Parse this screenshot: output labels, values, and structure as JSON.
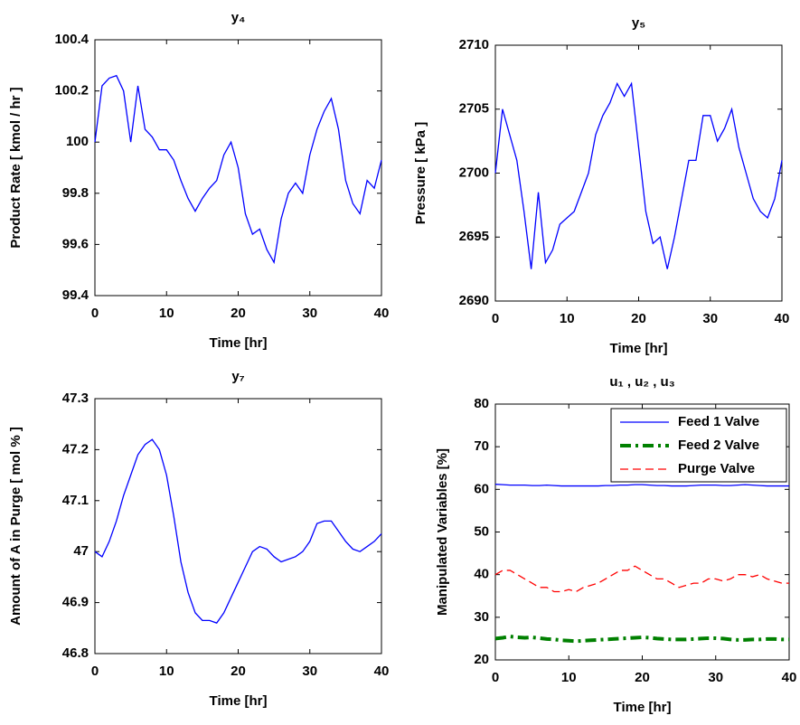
{
  "chart_data": [
    {
      "type": "line",
      "title": "y₄",
      "x_label": "Time [hr]",
      "y_label": "Product Rate [ kmol / hr ]",
      "x": [
        0,
        1,
        2,
        3,
        4,
        5,
        6,
        7,
        8,
        9,
        10,
        11,
        12,
        13,
        14,
        15,
        16,
        17,
        18,
        19,
        20,
        21,
        22,
        23,
        24,
        25,
        26,
        27,
        28,
        29,
        30,
        31,
        32,
        33,
        34,
        35,
        36,
        37,
        38,
        39,
        40
      ],
      "series": [
        {
          "color": "#0000ff",
          "values": [
            100.0,
            100.22,
            100.25,
            100.26,
            100.2,
            100.0,
            100.22,
            100.05,
            100.02,
            99.97,
            99.97,
            99.93,
            99.85,
            99.78,
            99.73,
            99.78,
            99.82,
            99.85,
            99.95,
            100.0,
            99.9,
            99.72,
            99.64,
            99.66,
            99.58,
            99.53,
            99.7,
            99.8,
            99.84,
            99.8,
            99.95,
            100.05,
            100.12,
            100.17,
            100.05,
            99.85,
            99.76,
            99.72,
            99.85,
            99.82,
            99.93
          ]
        }
      ],
      "xlim": [
        0,
        40
      ],
      "xticks": [
        0,
        10,
        20,
        30,
        40
      ],
      "ylim": [
        99.4,
        100.4
      ],
      "yticks": [
        99.4,
        99.6,
        99.8,
        100,
        100.2,
        100.4
      ]
    },
    {
      "type": "line",
      "title": "y₅",
      "x_label": "Time [hr]",
      "y_label": "Pressure [ kPa ]",
      "x": [
        0,
        1,
        2,
        3,
        4,
        5,
        6,
        7,
        8,
        9,
        10,
        11,
        12,
        13,
        14,
        15,
        16,
        17,
        18,
        19,
        20,
        21,
        22,
        23,
        24,
        25,
        26,
        27,
        28,
        29,
        30,
        31,
        32,
        33,
        34,
        35,
        36,
        37,
        38,
        39,
        40
      ],
      "series": [
        {
          "color": "#0000ff",
          "values": [
            2700,
            2705,
            2703,
            2701,
            2697,
            2692.5,
            2698.5,
            2693,
            2694,
            2696,
            2696.5,
            2697,
            2698.5,
            2700,
            2703,
            2704.5,
            2705.5,
            2707,
            2706,
            2707,
            2702,
            2697,
            2694.5,
            2695,
            2692.5,
            2695,
            2698,
            2701,
            2701,
            2704.5,
            2704.5,
            2702.5,
            2703.5,
            2705,
            2702,
            2700,
            2698,
            2697,
            2696.5,
            2698,
            2701
          ]
        }
      ],
      "xlim": [
        0,
        40
      ],
      "xticks": [
        0,
        10,
        20,
        30,
        40
      ],
      "ylim": [
        2690,
        2710
      ],
      "yticks": [
        2690,
        2695,
        2700,
        2705,
        2710
      ]
    },
    {
      "type": "line",
      "title": "y₇",
      "x_label": "Time [hr]",
      "y_label": "Amount of A in Purge [ mol % ]",
      "x": [
        0,
        1,
        2,
        3,
        4,
        5,
        6,
        7,
        8,
        9,
        10,
        11,
        12,
        13,
        14,
        15,
        16,
        17,
        18,
        19,
        20,
        21,
        22,
        23,
        24,
        25,
        26,
        27,
        28,
        29,
        30,
        31,
        32,
        33,
        34,
        35,
        36,
        37,
        38,
        39,
        40
      ],
      "series": [
        {
          "color": "#0000ff",
          "values": [
            47.0,
            46.99,
            47.02,
            47.06,
            47.11,
            47.15,
            47.19,
            47.21,
            47.22,
            47.2,
            47.15,
            47.07,
            46.98,
            46.92,
            46.88,
            46.865,
            46.865,
            46.86,
            46.88,
            46.91,
            46.94,
            46.97,
            47.0,
            47.01,
            47.005,
            46.99,
            46.98,
            46.985,
            46.99,
            47.0,
            47.02,
            47.055,
            47.06,
            47.06,
            47.04,
            47.02,
            47.005,
            47.0,
            47.01,
            47.02,
            47.035
          ]
        }
      ],
      "xlim": [
        0,
        40
      ],
      "xticks": [
        0,
        10,
        20,
        30,
        40
      ],
      "ylim": [
        46.8,
        47.3
      ],
      "yticks": [
        46.8,
        46.9,
        47,
        47.1,
        47.2,
        47.3
      ]
    },
    {
      "type": "line",
      "title": "u₁ , u₂ , u₃",
      "x_label": "Time [hr]",
      "y_label": "Manipulated Variables [%]",
      "x": [
        0,
        1,
        2,
        3,
        4,
        5,
        6,
        7,
        8,
        9,
        10,
        11,
        12,
        13,
        14,
        15,
        16,
        17,
        18,
        19,
        20,
        21,
        22,
        23,
        24,
        25,
        26,
        27,
        28,
        29,
        30,
        31,
        32,
        33,
        34,
        35,
        36,
        37,
        38,
        39,
        40
      ],
      "series": [
        {
          "name": "Feed 1 Valve",
          "color": "#0000ff",
          "line_style": "solid",
          "line_width": 1.3,
          "values": [
            61.2,
            61.1,
            61,
            61,
            61,
            60.9,
            60.9,
            61,
            60.9,
            60.8,
            60.8,
            60.8,
            60.8,
            60.8,
            60.8,
            60.9,
            60.9,
            61,
            61,
            61.1,
            61.1,
            61,
            60.9,
            60.9,
            60.8,
            60.8,
            60.8,
            60.9,
            61,
            61,
            61,
            60.9,
            60.9,
            61,
            61.1,
            61,
            60.9,
            60.8,
            60.8,
            60.8,
            60.8
          ]
        },
        {
          "name": "Feed 2 Valve",
          "color": "#008000",
          "line_style": "dashdot",
          "line_width": 4,
          "values": [
            25,
            25.2,
            25.5,
            25.3,
            25.2,
            25.3,
            25.1,
            24.9,
            24.8,
            24.6,
            24.5,
            24.4,
            24.5,
            24.6,
            24.7,
            24.8,
            24.9,
            25,
            25.1,
            25.2,
            25.3,
            25.2,
            25,
            24.9,
            24.8,
            24.8,
            24.8,
            24.9,
            25,
            25.1,
            25.1,
            25,
            24.8,
            24.7,
            24.7,
            24.8,
            24.8,
            24.9,
            24.9,
            24.8,
            24.8
          ]
        },
        {
          "name": "Purge Valve",
          "color": "#ff0000",
          "line_style": "dashed",
          "line_width": 1.3,
          "values": [
            40,
            41,
            41,
            40,
            39,
            38,
            37,
            37,
            36,
            36,
            36.5,
            36,
            37,
            37.5,
            38,
            39,
            40,
            41,
            41,
            42,
            41,
            40,
            39,
            39,
            38,
            37,
            37.5,
            38,
            38,
            39,
            39,
            38.5,
            39,
            40,
            40,
            39.5,
            40,
            39,
            38.5,
            38,
            38
          ]
        }
      ],
      "xlim": [
        0,
        40
      ],
      "xticks": [
        0,
        10,
        20,
        30,
        40
      ],
      "ylim": [
        20,
        80
      ],
      "yticks": [
        20,
        30,
        40,
        50,
        60,
        70,
        80
      ],
      "legend": "northeast"
    }
  ]
}
